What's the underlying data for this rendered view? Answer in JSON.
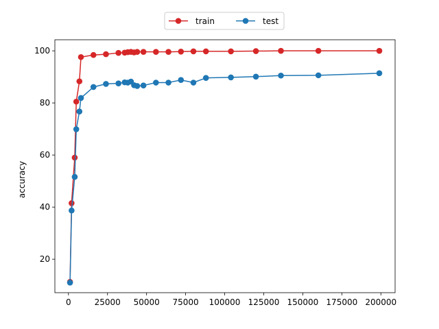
{
  "chart_data": {
    "type": "line",
    "title": "",
    "xlabel": "",
    "ylabel": "accuracy",
    "xlim": [
      -8700,
      209100
    ],
    "ylim": [
      7.15,
      104.25
    ],
    "xticks": [
      0,
      25000,
      50000,
      75000,
      100000,
      125000,
      150000,
      175000,
      200000
    ],
    "xtick_labels": [
      "0",
      "25000",
      "50000",
      "75000",
      "100000",
      "125000",
      "150000",
      "175000",
      "200000"
    ],
    "yticks": [
      20,
      40,
      60,
      80,
      100
    ],
    "ytick_labels": [
      "20",
      "40",
      "60",
      "80",
      "100"
    ],
    "grid": false,
    "legend": "top-center",
    "series": [
      {
        "name": "train",
        "color": "#d62728",
        "marker": "circle",
        "x": [
          1000,
          2000,
          4000,
          5000,
          7000,
          8000,
          16000,
          24000,
          32000,
          36000,
          38000,
          40000,
          42000,
          44000,
          48000,
          56000,
          64000,
          72000,
          80000,
          88000,
          104000,
          120000,
          136000,
          160000,
          199000
        ],
        "y": [
          11.3,
          41.5,
          59.0,
          80.5,
          88.3,
          97.6,
          98.4,
          98.7,
          99.2,
          99.3,
          99.5,
          99.6,
          99.4,
          99.6,
          99.6,
          99.6,
          99.6,
          99.7,
          99.8,
          99.8,
          99.8,
          99.9,
          100.0,
          100.0,
          100.0
        ]
      },
      {
        "name": "test",
        "color": "#1f77b4",
        "marker": "circle",
        "x": [
          1000,
          2000,
          4000,
          5000,
          7000,
          8000,
          16000,
          24000,
          32000,
          36000,
          38000,
          40000,
          42000,
          44000,
          48000,
          56000,
          64000,
          72000,
          80000,
          88000,
          104000,
          120000,
          136000,
          160000,
          199000
        ],
        "y": [
          11.0,
          38.7,
          51.6,
          69.9,
          76.7,
          81.9,
          86.1,
          87.3,
          87.5,
          87.9,
          87.8,
          88.2,
          86.8,
          86.5,
          86.7,
          87.8,
          87.8,
          88.8,
          87.8,
          89.6,
          89.8,
          90.1,
          90.5,
          90.6,
          91.4
        ]
      }
    ]
  }
}
